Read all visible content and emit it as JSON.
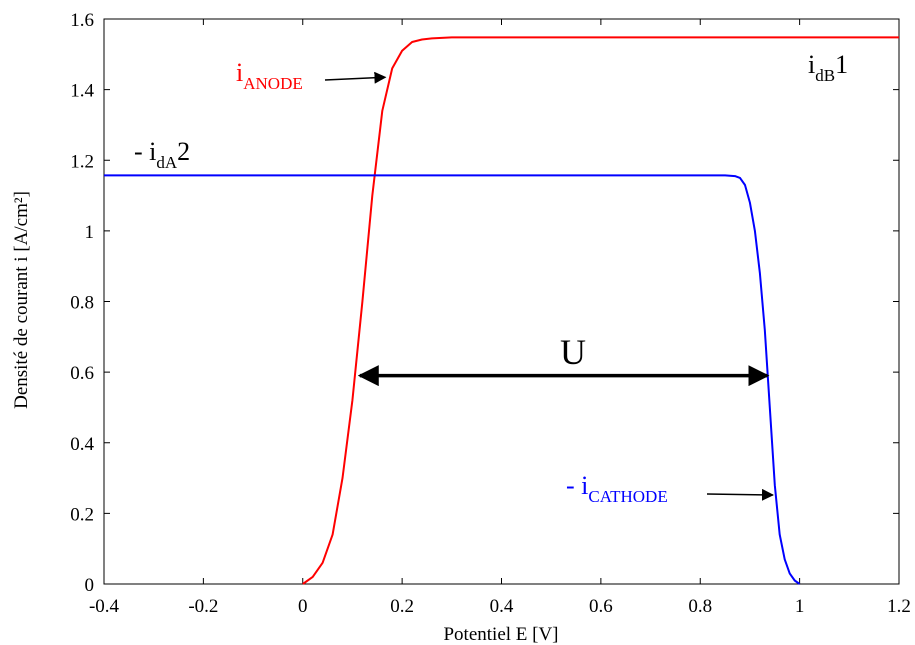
{
  "chart_data": {
    "type": "line",
    "xlabel": "Potentiel E [V]",
    "ylabel": "Densité de courant i [A/cm²]",
    "xlim": [
      -0.4,
      1.2
    ],
    "ylim": [
      0,
      1.6
    ],
    "xticks": [
      -0.4,
      -0.2,
      0,
      0.2,
      0.4,
      0.6,
      0.8,
      1,
      1.2
    ],
    "yticks": [
      0,
      0.2,
      0.4,
      0.6,
      0.8,
      1,
      1.2,
      1.4,
      1.6
    ],
    "xtick_labels": [
      "-0.4",
      "-0.2",
      "0",
      "0.2",
      "0.4",
      "0.6",
      "0.8",
      "1",
      "1.2"
    ],
    "ytick_labels": [
      "0",
      "0.2",
      "0.4",
      "0.6",
      "0.8",
      "1",
      "1.2",
      "1.4",
      "1.6"
    ],
    "grid": false,
    "series": [
      {
        "color": "#ff0000",
        "x": [
          0,
          0.02,
          0.04,
          0.06,
          0.08,
          0.1,
          0.12,
          0.14,
          0.16,
          0.18,
          0.2,
          0.22,
          0.24,
          0.26,
          0.3,
          0.35,
          1.21
        ],
        "y": [
          0,
          0.02,
          0.06,
          0.14,
          0.3,
          0.52,
          0.8,
          1.1,
          1.34,
          1.46,
          1.51,
          1.535,
          1.542,
          1.545,
          1.548,
          1.548,
          1.548
        ]
      },
      {
        "color": "#0000ff",
        "x": [
          -0.4,
          0.85,
          0.87,
          0.88,
          0.89,
          0.9,
          0.91,
          0.92,
          0.93,
          0.94,
          0.95,
          0.96,
          0.97,
          0.98,
          0.99,
          1.0
        ],
        "y": [
          1.157,
          1.157,
          1.155,
          1.15,
          1.13,
          1.08,
          1.0,
          0.88,
          0.72,
          0.5,
          0.28,
          0.14,
          0.07,
          0.03,
          0.01,
          0
        ]
      }
    ],
    "annotations": {
      "anode": {
        "main": "i",
        "sub": "ANODE",
        "color": "#ff0000",
        "x": 0.17,
        "y": 1.435
      },
      "cathode": {
        "main": "- i",
        "sub": "CATHODE",
        "color": "#0000ff",
        "x": 0.95,
        "y": 0.252
      },
      "idb1": {
        "main": "i",
        "sub": "dB",
        "suffix": "1",
        "color": "#000000"
      },
      "ida2": {
        "main": "- i",
        "sub": "dA",
        "suffix": "2",
        "color": "#000000"
      },
      "u": {
        "label": "U",
        "x_start": 0.115,
        "x_end": 0.935,
        "y": 0.59
      }
    }
  }
}
